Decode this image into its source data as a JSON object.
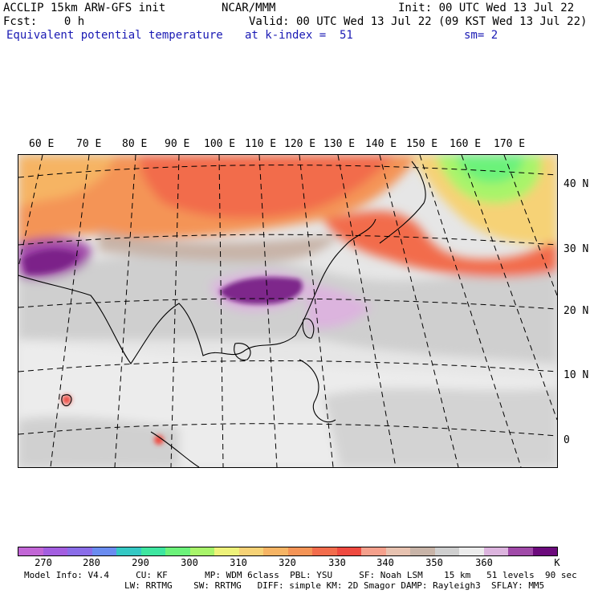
{
  "header": {
    "line1_left": "ACCLIP 15km ARW-GFS init",
    "line1_mid": "NCAR/MMM",
    "line1_right": "Init: 00 UTC Wed 13 Jul 22",
    "line2_left": "Fcst:    0 h",
    "line2_right": "Valid: 00 UTC Wed 13 Jul 22 (09 KST Wed 13 Jul 22)",
    "line3_field": "Equivalent potential temperature",
    "line3_level": "at k-index =  51",
    "line3_smooth": "sm= 2"
  },
  "map": {
    "lon_labels": [
      "60 E",
      "70 E",
      "80 E",
      "90 E",
      "100 E",
      "110 E",
      "120 E",
      "130 E",
      "140 E",
      "150 E",
      "160 E",
      "170 E"
    ],
    "lat_labels": [
      "40 N",
      "30 N",
      "20 N",
      "10 N",
      "0"
    ]
  },
  "colorbar": {
    "colors": [
      "#c266d6",
      "#a35ee0",
      "#8a6de8",
      "#6a8cf0",
      "#34c8c4",
      "#3ee6a0",
      "#6cf27a",
      "#a8f46a",
      "#eef27a",
      "#f6d276",
      "#f6b464",
      "#f49456",
      "#f26c4c",
      "#ef4a40",
      "#f5a08c",
      "#e7c2b0",
      "#c8b4a8",
      "#cfcfcf",
      "#ececec",
      "#dcb4de",
      "#a04aa8",
      "#6c0a7c"
    ],
    "tick_labels": [
      "270",
      "280",
      "290",
      "300",
      "310",
      "320",
      "330",
      "340",
      "350",
      "360"
    ],
    "unit": "K"
  },
  "footer": {
    "line1": "Model Info: V4.4     CU: KF       MP: WDM 6class  PBL: YSU     SF: Noah LSM    15 km   51 levels  90 sec",
    "line2": "LW: RRTMG    SW: RRTMG   DIFF: simple KM: 2D Smagor DAMP: Rayleigh3  SFLAY: MM5"
  }
}
